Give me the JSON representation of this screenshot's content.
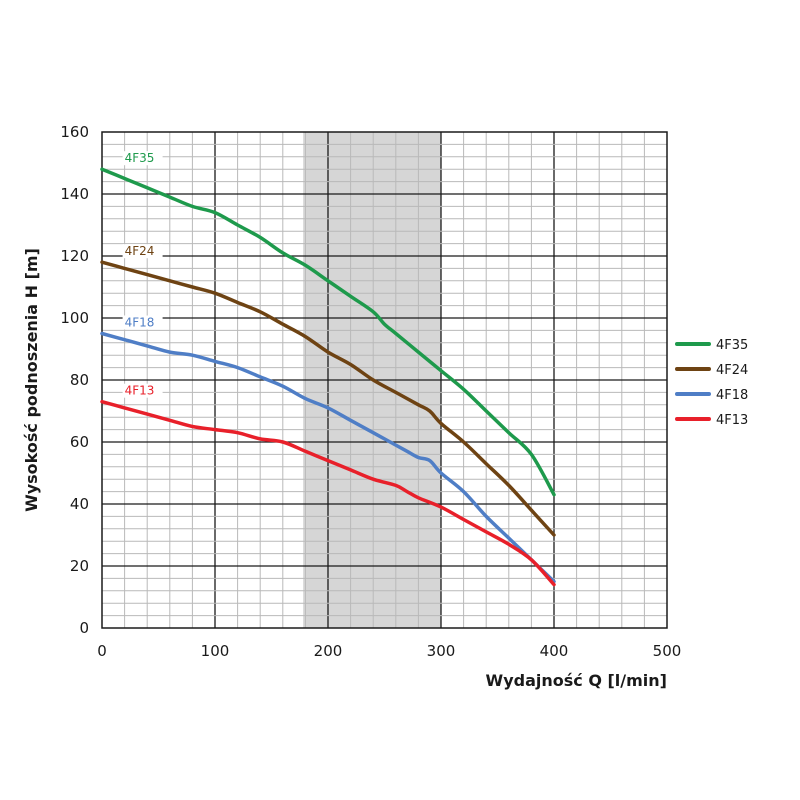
{
  "chart_data": {
    "type": "line",
    "title": "",
    "xlabel": "Wydajność Q [l/min]",
    "ylabel": "Wysokość podnoszenia H [m]",
    "xlim": [
      0,
      500
    ],
    "ylim": [
      0,
      160
    ],
    "x_ticks": [
      "0",
      "100",
      "200",
      "300",
      "400",
      "500"
    ],
    "y_ticks": [
      "0",
      "20",
      "40",
      "60",
      "80",
      "100",
      "120",
      "140",
      "160"
    ],
    "grid": true,
    "legend_position": "right",
    "highlight_band": [
      178,
      300
    ],
    "series": [
      {
        "name": "4F35",
        "color": "#1e9a4c",
        "points": [
          [
            0,
            148
          ],
          [
            20,
            145
          ],
          [
            40,
            142
          ],
          [
            60,
            139
          ],
          [
            80,
            136
          ],
          [
            100,
            134
          ],
          [
            120,
            130
          ],
          [
            140,
            126
          ],
          [
            160,
            121
          ],
          [
            180,
            117
          ],
          [
            200,
            112
          ],
          [
            220,
            107
          ],
          [
            240,
            102
          ],
          [
            250,
            98
          ],
          [
            260,
            95
          ],
          [
            280,
            89
          ],
          [
            300,
            83
          ],
          [
            320,
            77
          ],
          [
            340,
            70
          ],
          [
            360,
            63
          ],
          [
            380,
            56
          ],
          [
            400,
            43
          ]
        ]
      },
      {
        "name": "4F24",
        "color": "#6e4313",
        "points": [
          [
            0,
            118
          ],
          [
            20,
            116
          ],
          [
            40,
            114
          ],
          [
            60,
            112
          ],
          [
            80,
            110
          ],
          [
            100,
            108
          ],
          [
            120,
            105
          ],
          [
            140,
            102
          ],
          [
            160,
            98
          ],
          [
            180,
            94
          ],
          [
            200,
            89
          ],
          [
            220,
            85
          ],
          [
            240,
            80
          ],
          [
            260,
            76
          ],
          [
            280,
            72
          ],
          [
            290,
            70
          ],
          [
            300,
            66
          ],
          [
            320,
            60
          ],
          [
            340,
            53
          ],
          [
            360,
            46
          ],
          [
            380,
            38
          ],
          [
            400,
            30
          ]
        ]
      },
      {
        "name": "4F18",
        "color": "#4f7ec6",
        "points": [
          [
            0,
            95
          ],
          [
            20,
            93
          ],
          [
            40,
            91
          ],
          [
            60,
            89
          ],
          [
            80,
            88
          ],
          [
            100,
            86
          ],
          [
            120,
            84
          ],
          [
            140,
            81
          ],
          [
            160,
            78
          ],
          [
            180,
            74
          ],
          [
            200,
            71
          ],
          [
            220,
            67
          ],
          [
            240,
            63
          ],
          [
            250,
            61
          ],
          [
            260,
            59
          ],
          [
            270,
            57
          ],
          [
            280,
            55
          ],
          [
            290,
            54
          ],
          [
            300,
            50
          ],
          [
            320,
            44
          ],
          [
            340,
            36
          ],
          [
            360,
            29
          ],
          [
            380,
            22
          ],
          [
            400,
            15
          ]
        ]
      },
      {
        "name": "4F13",
        "color": "#e8202a",
        "points": [
          [
            0,
            73
          ],
          [
            20,
            71
          ],
          [
            40,
            69
          ],
          [
            60,
            67
          ],
          [
            80,
            65
          ],
          [
            100,
            64
          ],
          [
            120,
            63
          ],
          [
            140,
            61
          ],
          [
            160,
            60
          ],
          [
            180,
            57
          ],
          [
            200,
            54
          ],
          [
            220,
            51
          ],
          [
            240,
            48
          ],
          [
            260,
            46
          ],
          [
            270,
            44
          ],
          [
            280,
            42
          ],
          [
            300,
            39
          ],
          [
            320,
            35
          ],
          [
            340,
            31
          ],
          [
            360,
            27
          ],
          [
            380,
            22
          ],
          [
            400,
            14
          ]
        ]
      }
    ]
  }
}
